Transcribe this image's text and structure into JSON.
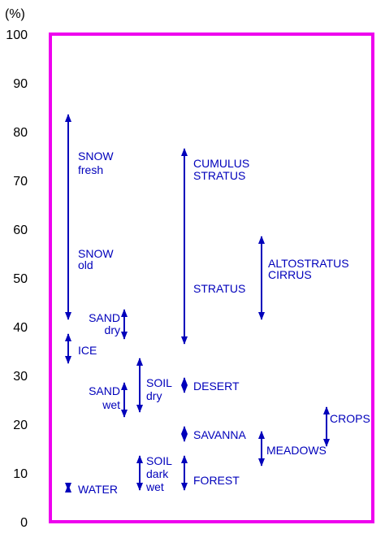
{
  "chart_data": {
    "type": "range",
    "title": "",
    "xlabel": "",
    "ylabel": "(%)",
    "ylim": [
      0,
      100
    ],
    "yticks": [
      "0",
      "10",
      "20",
      "30",
      "40",
      "50",
      "60",
      "70",
      "80",
      "90",
      "100"
    ],
    "grid": false,
    "frame_color": "#ee00ee",
    "arrow_color": "#0000bb",
    "text_color": "#0000bb",
    "series": [
      {
        "name": "SNOW",
        "low": 41,
        "high": 84,
        "labels": [
          "SNOW",
          "fresh"
        ]
      },
      {
        "name": "SNOW",
        "low": 41,
        "high": 84,
        "labels": [
          "SNOW",
          "old"
        ]
      },
      {
        "name": "ICE",
        "low": 32,
        "high": 39,
        "labels": [
          "ICE"
        ]
      },
      {
        "name": "SAND",
        "low": 37,
        "high": 44,
        "labels": [
          "SAND",
          "dry"
        ]
      },
      {
        "name": "SAND",
        "low": 21,
        "high": 29,
        "labels": [
          "SAND",
          "wet"
        ]
      },
      {
        "name": "SOIL",
        "low": 22,
        "high": 34,
        "labels": [
          "SOIL",
          "dry"
        ]
      },
      {
        "name": "SOIL",
        "low": 6,
        "high": 14,
        "labels": [
          "SOIL",
          "dark",
          "wet"
        ]
      },
      {
        "name": "WATER",
        "low": 6,
        "high": 8,
        "labels": [
          "WATER"
        ]
      },
      {
        "name": "CUMULUS STRATUS",
        "low": 36,
        "high": 77,
        "labels": [
          "CUMULUS",
          "STRATUS"
        ]
      },
      {
        "name": "STRATUS",
        "low": 36,
        "high": 77,
        "labels": [
          "STRATUS"
        ]
      },
      {
        "name": "DESERT",
        "low": 26,
        "high": 30,
        "labels": [
          "DESERT"
        ]
      },
      {
        "name": "SAVANNA",
        "low": 16,
        "high": 20,
        "labels": [
          "SAVANNA"
        ]
      },
      {
        "name": "FOREST",
        "low": 6,
        "high": 14,
        "labels": [
          "FOREST"
        ]
      },
      {
        "name": "ALTOSTRATUS CIRRUS",
        "low": 41,
        "high": 59,
        "labels": [
          "ALTOSTRATUS",
          "CIRRUS"
        ]
      },
      {
        "name": "MEADOWS",
        "low": 11,
        "high": 19,
        "labels": [
          "MEADOWS"
        ]
      },
      {
        "name": "CROPS",
        "low": 15,
        "high": 24,
        "labels": [
          "CROPS"
        ]
      }
    ]
  }
}
